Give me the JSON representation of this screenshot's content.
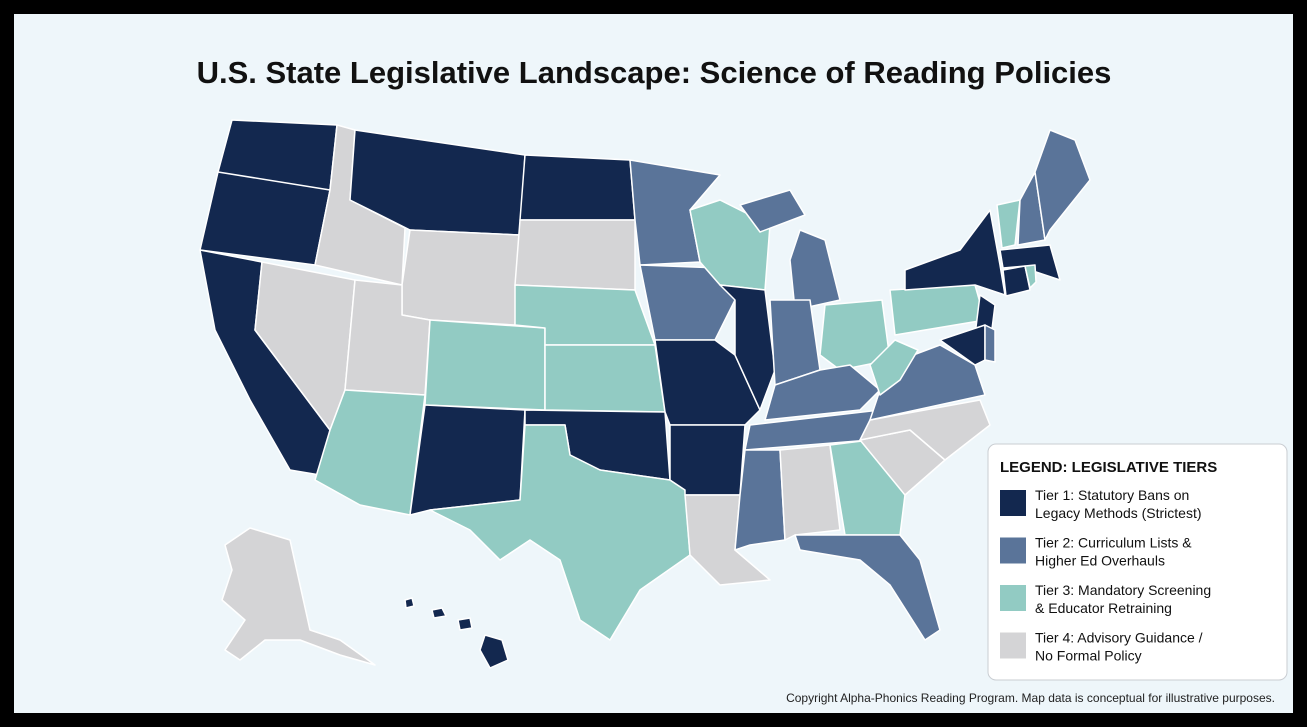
{
  "title": "U.S. State Legislative Landscape: Science of Reading Policies",
  "legend": {
    "title": "LEGEND: LEGISLATIVE TIERS",
    "items": [
      {
        "lines": [
          "Tier 1: Statutory Bans on",
          "Legacy Methods (Strictest)"
        ],
        "color": "#13284f"
      },
      {
        "lines": [
          "Tier 2: Curriculum Lists &",
          "Higher Ed Overhauls"
        ],
        "color": "#5a7499"
      },
      {
        "lines": [
          "Tier 3: Mandatory Screening",
          "& Educator Retraining"
        ],
        "color": "#92cbc3"
      },
      {
        "lines": [
          "Tier 4: Advisory Guidance /",
          "No Formal Policy"
        ],
        "color": "#d4d4d6"
      }
    ]
  },
  "footer": "Copyright Alpha-Phonics Reading Program. Map data is conceptual for illustrative purposes."
}
